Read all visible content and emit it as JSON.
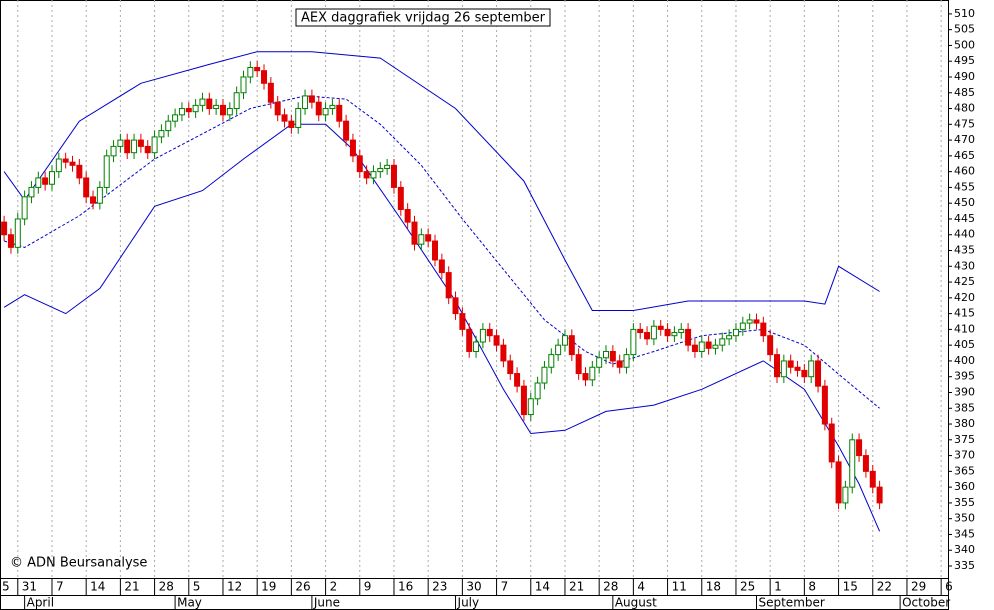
{
  "chart_data": {
    "type": "candlestick",
    "title": "AEX daggrafiek vrijdag 26 september",
    "annotation": "© ADN Beursanalyse",
    "up_color": "#008000",
    "down_color": "#e00000",
    "band_color": "#0000cc",
    "x": [
      0,
      1,
      2,
      3,
      4,
      5,
      6,
      7,
      8,
      9,
      10,
      11,
      12,
      13,
      14,
      15,
      16,
      17,
      18,
      19,
      20,
      21,
      22,
      23,
      24,
      25,
      26,
      27,
      28,
      29,
      30,
      31,
      32,
      33,
      34,
      35,
      36,
      37,
      38,
      39,
      40,
      41,
      42,
      43,
      44,
      45,
      46,
      47,
      48,
      49,
      50,
      51,
      52,
      53,
      54,
      55,
      56,
      57,
      58,
      59,
      60,
      61,
      62,
      63,
      64,
      65,
      66,
      67,
      68,
      69,
      70,
      71,
      72,
      73,
      74,
      75,
      76,
      77,
      78,
      79,
      80,
      81,
      82,
      83,
      84,
      85,
      86,
      87,
      88,
      89,
      90,
      91,
      92,
      93,
      94,
      95,
      96,
      97,
      98,
      99,
      100,
      101,
      102,
      103,
      104,
      105,
      106,
      107,
      108,
      109,
      110,
      111,
      112,
      113,
      114,
      115,
      116,
      117,
      118,
      119,
      120,
      121,
      122,
      123,
      124,
      125,
      126,
      127,
      128
    ],
    "open": [
      444,
      440,
      436,
      445,
      452,
      455,
      458,
      456,
      460,
      464,
      463,
      462,
      458,
      452,
      450,
      455,
      465,
      468,
      470,
      466,
      470,
      468,
      466,
      471,
      473,
      476,
      478,
      480,
      479,
      481,
      483,
      480,
      481,
      478,
      480,
      485,
      490,
      493,
      492,
      488,
      482,
      478,
      476,
      474,
      480,
      484,
      482,
      478,
      480,
      481,
      476,
      470,
      465,
      460,
      458,
      460,
      461,
      462,
      455,
      448,
      444,
      437,
      440,
      438,
      432,
      428,
      420,
      415,
      410,
      403,
      406,
      410,
      408,
      405,
      400,
      396,
      392,
      383,
      388,
      393,
      398,
      402,
      405,
      408,
      402,
      396,
      394,
      398,
      401,
      403,
      400,
      398,
      402,
      410,
      409,
      407,
      411,
      410,
      408,
      409,
      410,
      405,
      403,
      406,
      404,
      405,
      407,
      408,
      410,
      412,
      413,
      412,
      408,
      402,
      395,
      400,
      398,
      397,
      395,
      400,
      392,
      380,
      368,
      355,
      360,
      375,
      370,
      365,
      360
    ],
    "high": [
      446,
      442,
      447,
      454,
      457,
      460,
      460,
      462,
      466,
      466,
      465,
      464,
      460,
      454,
      457,
      467,
      470,
      472,
      472,
      472,
      472,
      470,
      473,
      475,
      478,
      480,
      482,
      482,
      483,
      485,
      485,
      483,
      483,
      482,
      487,
      492,
      495,
      495,
      494,
      490,
      484,
      480,
      478,
      482,
      486,
      486,
      484,
      482,
      483,
      483,
      478,
      472,
      467,
      462,
      462,
      463,
      464,
      464,
      457,
      450,
      446,
      442,
      442,
      440,
      434,
      430,
      422,
      417,
      412,
      408,
      412,
      412,
      410,
      407,
      402,
      398,
      394,
      390,
      395,
      400,
      404,
      407,
      410,
      410,
      404,
      398,
      400,
      403,
      405,
      405,
      402,
      404,
      412,
      412,
      411,
      413,
      413,
      412,
      411,
      412,
      412,
      407,
      408,
      408,
      407,
      409,
      410,
      412,
      414,
      415,
      415,
      414,
      410,
      404,
      402,
      402,
      400,
      399,
      402,
      402,
      394,
      382,
      370,
      362,
      377,
      377,
      372,
      367,
      362
    ],
    "low": [
      438,
      434,
      434,
      443,
      450,
      453,
      454,
      454,
      458,
      461,
      460,
      456,
      450,
      448,
      448,
      453,
      463,
      466,
      464,
      464,
      466,
      464,
      464,
      469,
      471,
      474,
      476,
      477,
      477,
      479,
      478,
      478,
      476,
      476,
      478,
      483,
      488,
      490,
      486,
      480,
      476,
      474,
      472,
      472,
      478,
      480,
      476,
      476,
      478,
      474,
      468,
      463,
      458,
      456,
      456,
      458,
      459,
      453,
      446,
      442,
      435,
      435,
      436,
      430,
      426,
      418,
      413,
      408,
      401,
      401,
      404,
      406,
      403,
      398,
      394,
      390,
      381,
      381,
      386,
      391,
      396,
      400,
      403,
      400,
      394,
      392,
      392,
      396,
      399,
      398,
      396,
      396,
      400,
      407,
      405,
      405,
      408,
      406,
      406,
      407,
      403,
      401,
      401,
      402,
      402,
      403,
      405,
      406,
      408,
      410,
      410,
      406,
      400,
      393,
      393,
      396,
      395,
      393,
      393,
      390,
      378,
      366,
      353,
      353,
      358,
      368,
      363,
      358,
      353
    ],
    "close": [
      440,
      436,
      445,
      452,
      455,
      458,
      456,
      460,
      464,
      463,
      462,
      458,
      452,
      450,
      455,
      465,
      468,
      470,
      466,
      470,
      468,
      466,
      471,
      473,
      476,
      478,
      480,
      479,
      481,
      483,
      480,
      481,
      478,
      480,
      485,
      490,
      493,
      492,
      488,
      482,
      478,
      476,
      474,
      480,
      484,
      482,
      478,
      480,
      481,
      476,
      470,
      465,
      460,
      458,
      460,
      461,
      462,
      455,
      448,
      444,
      437,
      440,
      438,
      432,
      428,
      420,
      415,
      410,
      403,
      406,
      410,
      408,
      405,
      400,
      396,
      392,
      383,
      388,
      393,
      398,
      402,
      405,
      408,
      402,
      396,
      394,
      398,
      401,
      403,
      400,
      398,
      402,
      410,
      409,
      407,
      411,
      410,
      408,
      409,
      410,
      405,
      403,
      406,
      404,
      405,
      407,
      408,
      410,
      412,
      413,
      412,
      408,
      402,
      395,
      400,
      398,
      397,
      395,
      400,
      392,
      380,
      368,
      355,
      360,
      375,
      370,
      365,
      360,
      355
    ],
    "bands": [
      {
        "x": [
          0,
          3,
          11,
          20,
          30,
          37,
          45,
          55,
          66,
          76,
          82,
          86,
          92,
          100,
          111,
          117,
          120,
          122,
          128
        ],
        "values": [
          460,
          451,
          476,
          488,
          494,
          498,
          498,
          496,
          480,
          457,
          432,
          416,
          416,
          419,
          419,
          419,
          418,
          430,
          422
        ],
        "dashed": false
      },
      {
        "x": [
          0,
          3,
          11,
          22,
          29,
          36,
          44,
          50,
          55,
          61,
          67,
          73,
          79,
          85,
          89,
          95,
          102,
          111,
          117,
          123,
          128
        ],
        "values": [
          438,
          436,
          446,
          464,
          472,
          480,
          484,
          483,
          475,
          462,
          445,
          429,
          413,
          403,
          399,
          403,
          408,
          410,
          405,
          394,
          385
        ],
        "dashed": true
      },
      {
        "x": [
          0,
          3,
          9,
          14,
          22,
          29,
          35,
          42,
          47,
          51,
          58,
          66,
          73,
          77,
          82,
          88,
          95,
          102,
          111,
          117,
          122,
          125,
          128
        ],
        "values": [
          417,
          421,
          415,
          423,
          449,
          454,
          464,
          475,
          475,
          467,
          445,
          419,
          391,
          377,
          378,
          384,
          386,
          391,
          400,
          391,
          373,
          361,
          346
        ],
        "dashed": false
      }
    ],
    "xlim": [
      -0.6,
      138
    ],
    "xticks": [
      {
        "value": -3,
        "label": "5"
      },
      {
        "value": 2,
        "label": "31"
      },
      {
        "value": 7,
        "label": "7"
      },
      {
        "value": 12,
        "label": "14"
      },
      {
        "value": 17,
        "label": "21"
      },
      {
        "value": 22,
        "label": "28"
      },
      {
        "value": 27,
        "label": "5"
      },
      {
        "value": 32,
        "label": "12"
      },
      {
        "value": 37,
        "label": "19"
      },
      {
        "value": 42,
        "label": "26"
      },
      {
        "value": 47,
        "label": "2"
      },
      {
        "value": 52,
        "label": "9"
      },
      {
        "value": 57,
        "label": "16"
      },
      {
        "value": 62,
        "label": "23"
      },
      {
        "value": 67,
        "label": "30"
      },
      {
        "value": 72,
        "label": "7"
      },
      {
        "value": 77,
        "label": "14"
      },
      {
        "value": 82,
        "label": "21"
      },
      {
        "value": 87,
        "label": "28"
      },
      {
        "value": 92,
        "label": "4"
      },
      {
        "value": 97,
        "label": "11"
      },
      {
        "value": 102,
        "label": "18"
      },
      {
        "value": 107,
        "label": "25"
      },
      {
        "value": 112,
        "label": "1"
      },
      {
        "value": 117,
        "label": "8"
      },
      {
        "value": 122,
        "label": "15"
      },
      {
        "value": 127,
        "label": "22"
      },
      {
        "value": 132,
        "label": "29"
      },
      {
        "value": 137,
        "label": "6"
      }
    ],
    "months": [
      {
        "value": 3,
        "label": "April"
      },
      {
        "value": 25,
        "label": "May"
      },
      {
        "value": 45,
        "label": "June"
      },
      {
        "value": 66,
        "label": "July"
      },
      {
        "value": 89,
        "label": "August"
      },
      {
        "value": 110,
        "label": "September"
      },
      {
        "value": 131,
        "label": "October"
      }
    ],
    "ylim": [
      331.2,
      514.4
    ],
    "yticks": [
      335,
      340,
      345,
      350,
      355,
      360,
      365,
      370,
      375,
      380,
      385,
      390,
      395,
      400,
      405,
      410,
      415,
      420,
      425,
      430,
      435,
      440,
      445,
      450,
      455,
      460,
      465,
      470,
      475,
      480,
      485,
      490,
      495,
      500,
      505,
      510
    ]
  }
}
